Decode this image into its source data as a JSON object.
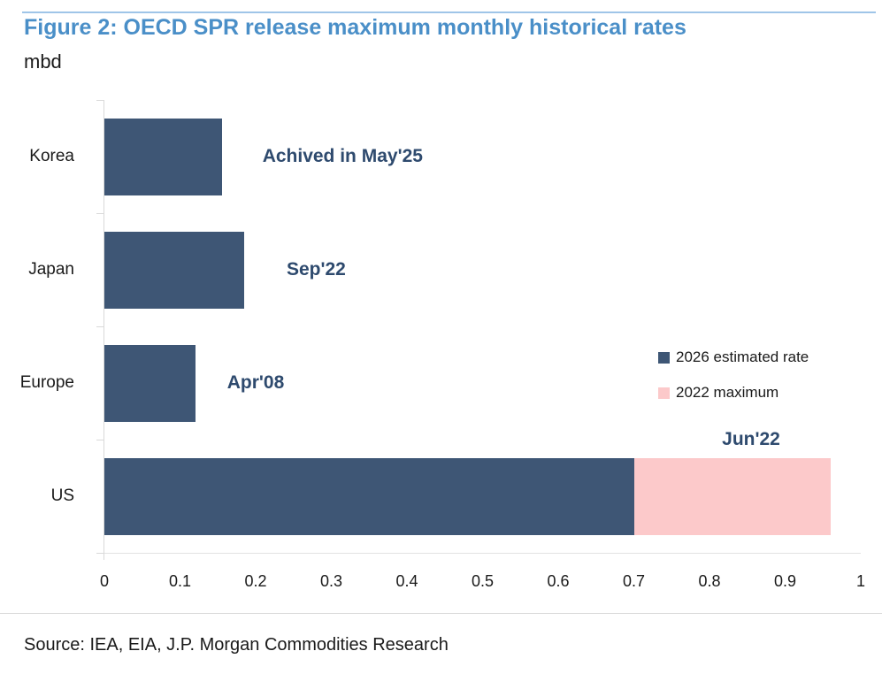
{
  "figure": {
    "title": "Figure 2: OECD SPR release maximum monthly historical rates",
    "unit_label": "mbd",
    "source": "Source: IEA, EIA, J.P. Morgan Commodities Research"
  },
  "colors": {
    "title_blue": "#4A8FC8",
    "top_rule": "#9FC5E8",
    "bar_primary": "#3E5675",
    "bar_secondary": "#FCC9CA",
    "annotation": "#2E4A6E",
    "axis_gray": "#D9D9D9",
    "text": "#1A1A1A"
  },
  "legend": [
    {
      "label": "2026 estimated rate",
      "color": "#3E5675"
    },
    {
      "label": "2022 maximum",
      "color": "#FCC9CA"
    }
  ],
  "chart_data": {
    "type": "bar",
    "orientation": "horizontal",
    "title": "Figure 2: OECD SPR release maximum monthly historical rates",
    "xlabel": "mbd",
    "xlim": [
      0,
      1
    ],
    "grid": false,
    "legend_position": "middle-right",
    "categories": [
      "Korea",
      "Japan",
      "Europe",
      "US"
    ],
    "series": [
      {
        "name": "2026 estimated rate",
        "values": [
          0.155,
          0.185,
          0.12,
          0.7
        ]
      },
      {
        "name": "2022 maximum",
        "values": [
          0,
          0,
          0,
          0.96
        ]
      }
    ],
    "bars": [
      {
        "category": "Korea",
        "segments": [
          {
            "series": "2026 estimated rate",
            "from": 0,
            "to": 0.155
          }
        ]
      },
      {
        "category": "Japan",
        "segments": [
          {
            "series": "2026 estimated rate",
            "from": 0,
            "to": 0.185
          }
        ]
      },
      {
        "category": "Europe",
        "segments": [
          {
            "series": "2026 estimated rate",
            "from": 0,
            "to": 0.12
          }
        ]
      },
      {
        "category": "US",
        "segments": [
          {
            "series": "2026 estimated rate",
            "from": 0,
            "to": 0.7
          },
          {
            "series": "2022 maximum",
            "from": 0.7,
            "to": 0.96
          }
        ]
      }
    ],
    "annotations": [
      {
        "category": "Korea",
        "text": "Achived in May'25",
        "x": 0.315,
        "position": "bar-center"
      },
      {
        "category": "Japan",
        "text": "Sep'22",
        "x": 0.28,
        "position": "bar-center"
      },
      {
        "category": "Europe",
        "text": "Apr'08",
        "x": 0.2,
        "position": "bar-center"
      },
      {
        "category": "US",
        "text": "Jun'22",
        "x": 0.855,
        "position": "above-bar"
      }
    ],
    "xticks": [
      {
        "v": 0,
        "label": "0"
      },
      {
        "v": 0.1,
        "label": "0.1"
      },
      {
        "v": 0.2,
        "label": "0.2"
      },
      {
        "v": 0.3,
        "label": "0.3"
      },
      {
        "v": 0.4,
        "label": "0.4"
      },
      {
        "v": 0.5,
        "label": "0.5"
      },
      {
        "v": 0.6,
        "label": "0.6"
      },
      {
        "v": 0.7,
        "label": "0.7"
      },
      {
        "v": 0.8,
        "label": "0.8"
      },
      {
        "v": 0.9,
        "label": "0.9"
      },
      {
        "v": 1,
        "label": "1"
      }
    ]
  }
}
